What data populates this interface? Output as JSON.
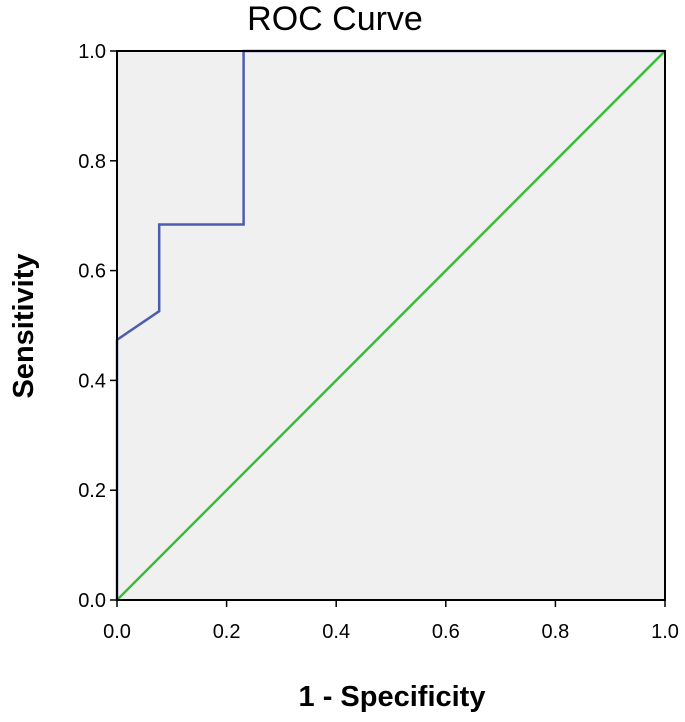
{
  "chart_data": {
    "type": "line",
    "title": "ROC Curve",
    "xlabel": "1 - Specificity",
    "ylabel": "Sensitivity",
    "xlim": [
      0,
      1
    ],
    "ylim": [
      0,
      1
    ],
    "x_ticks": [
      "0.0",
      "0.2",
      "0.4",
      "0.6",
      "0.8",
      "1.0"
    ],
    "y_ticks": [
      "0.0",
      "0.2",
      "0.4",
      "0.6",
      "0.8",
      "1.0"
    ],
    "grid": false,
    "legend": "none",
    "plot_background": "#f0f0f0",
    "series": [
      {
        "color": "#4a5db0",
        "points": [
          [
            0,
            0
          ],
          [
            0,
            0.474
          ],
          [
            0.077,
            0.526
          ],
          [
            0.077,
            0.684
          ],
          [
            0.231,
            0.684
          ],
          [
            0.231,
            1.0
          ],
          [
            1.0,
            1.0
          ]
        ]
      },
      {
        "color": "#3cba3c",
        "points": [
          [
            0,
            0
          ],
          [
            1,
            1
          ]
        ]
      }
    ]
  }
}
